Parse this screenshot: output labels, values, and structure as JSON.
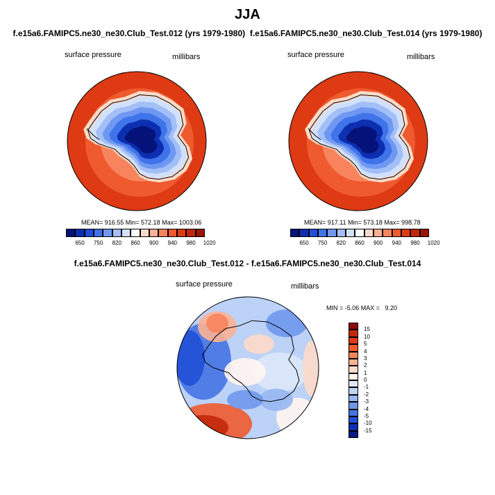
{
  "title": "JJA",
  "subtitles": [
    "f.e15a6.FAMIPC5.ne30_ne30.Club_Test.012 (yrs 1979-1980)",
    "f.e15a6.FAMIPC5.ne30_ne30.Club_Test.014 (yrs 1979-1980)"
  ],
  "subtitle_sep": "  ",
  "diff_title": "f.e15a6.FAMIPC5.ne30_ne30.Club_Test.012 - f.e15a6.FAMIPC5.ne30_ne30.Club_Test.014",
  "colors": {
    "ocean_red": "#e8501e",
    "ocean_light": "#f0643a",
    "ice_blue_dark": "#061a8c",
    "coast": "#000000"
  },
  "chart_data": [
    {
      "type": "heatmap",
      "projection": "south-polar-stereographic",
      "variable": "surface pressure",
      "units": "millibars",
      "stats_text": "MEAN= 916.55  Min= 572.18  Max= 1003.06",
      "mean": 916.55,
      "min": 572.18,
      "max": 1003.06,
      "colorbar_orientation": "horizontal",
      "colorbar_ticks": [
        "650",
        "750",
        "820",
        "860",
        "900",
        "940",
        "980",
        "1020"
      ],
      "colorbar_colors": [
        "#05127a",
        "#0c2fb0",
        "#1f4fd9",
        "#3f73ea",
        "#6f98f2",
        "#a3bff7",
        "#d2e1fb",
        "#ffffff",
        "#fddac8",
        "#fbb194",
        "#f7845c",
        "#ef5a2e",
        "#de3a14",
        "#c3270a",
        "#9a1405"
      ]
    },
    {
      "type": "heatmap",
      "projection": "south-polar-stereographic",
      "variable": "surface pressure",
      "units": "millibars",
      "stats_text": "MEAN= 917.11  Min= 573.18  Max= 998.78",
      "mean": 917.11,
      "min": 573.18,
      "max": 998.78,
      "colorbar_orientation": "horizontal",
      "colorbar_ticks": [
        "650",
        "750",
        "820",
        "860",
        "900",
        "940",
        "980",
        "1020"
      ],
      "colorbar_colors": [
        "#05127a",
        "#0c2fb0",
        "#1f4fd9",
        "#3f73ea",
        "#6f98f2",
        "#a3bff7",
        "#d2e1fb",
        "#ffffff",
        "#fddac8",
        "#fbb194",
        "#f7845c",
        "#ef5a2e",
        "#de3a14",
        "#c3270a",
        "#9a1405"
      ]
    },
    {
      "type": "heatmap",
      "projection": "south-polar-stereographic",
      "variable": "surface pressure",
      "units": "millibars",
      "stats_text": "MIN = -5.06 MAX =   9.20",
      "min": -5.06,
      "max": 9.2,
      "colorbar_orientation": "vertical",
      "colorbar_ticks": [
        "15",
        "10",
        "5",
        "4",
        "3",
        "2",
        "1",
        "0",
        "-1",
        "-2",
        "-3",
        "-4",
        "-5",
        "-10",
        "-15"
      ],
      "colorbar_colors": [
        "#8c0c04",
        "#c3270a",
        "#de3a14",
        "#ef5a2e",
        "#f7845c",
        "#fbb194",
        "#fddac8",
        "#fff5ee",
        "#dce8fa",
        "#bcd2f7",
        "#98b7f1",
        "#6f98ec",
        "#4573e3",
        "#2150d6",
        "#0d2fb0",
        "#061a80"
      ]
    }
  ]
}
